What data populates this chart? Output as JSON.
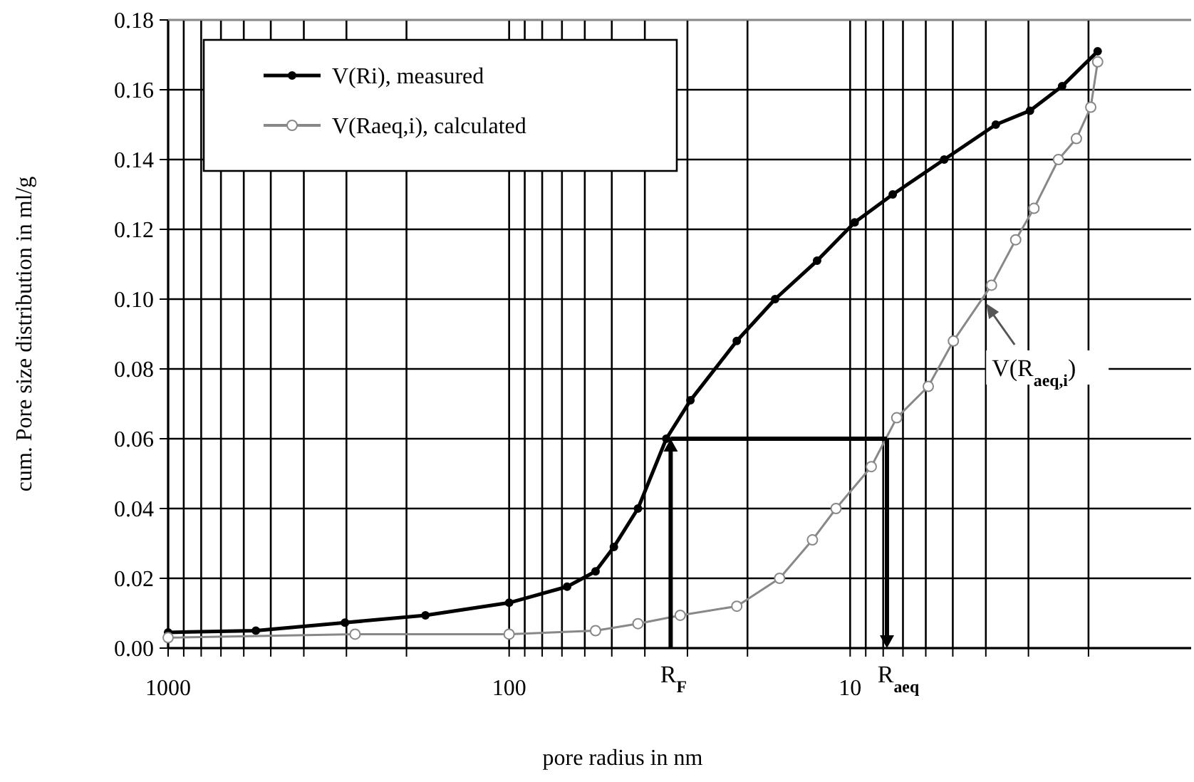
{
  "chart_data": {
    "type": "line",
    "xlabel": "pore radius in nm",
    "ylabel": "cum. Pore size distribution in ml/g",
    "log": "x",
    "xlim": [
      1000,
      1
    ],
    "ylim": [
      0,
      0.18
    ],
    "xticks": [
      1000,
      {
        "value": 900,
        "label": null
      },
      {
        "value": 800,
        "label": null
      },
      {
        "value": 700,
        "label": null
      },
      {
        "value": 600,
        "label": null
      },
      {
        "value": 500,
        "label": null
      },
      {
        "value": 400,
        "label": null
      },
      {
        "value": 300,
        "label": null
      },
      {
        "value": 200,
        "label": null
      },
      100,
      {
        "value": 90,
        "label": null
      },
      {
        "value": 80,
        "label": null
      },
      {
        "value": 70,
        "label": null
      },
      {
        "value": 60,
        "label": null
      },
      {
        "value": 50,
        "label": null
      },
      {
        "value": 40,
        "label": null
      },
      {
        "value": 30,
        "label": null
      },
      {
        "value": 20,
        "label": null
      },
      10,
      {
        "value": 9,
        "label": null
      },
      {
        "value": 8,
        "label": null
      },
      {
        "value": 7,
        "label": null
      },
      {
        "value": 6,
        "label": null
      },
      {
        "value": 5,
        "label": null
      },
      {
        "value": 4,
        "label": null
      },
      {
        "value": 3,
        "label": null
      },
      {
        "value": 2,
        "label": null
      }
    ],
    "yticks": [
      {
        "value": 0,
        "label": "0.00"
      },
      0.02,
      0.04,
      0.06,
      0.08,
      {
        "value": 0.1,
        "label": "0.10"
      },
      0.12,
      0.14,
      0.16,
      0.18
    ],
    "grid": true,
    "legend": "top left",
    "marker": "circle",
    "series": [
      {
        "name": "V(Ri), measured",
        "color": "#000000",
        "x": [
          1000,
          553,
          303,
          176,
          100,
          67.6,
          55.8,
          49.3,
          41.9,
          34.6,
          29.4,
          21.5,
          16.6,
          12.5,
          9.7,
          7.5,
          5.3,
          3.74,
          2.97,
          2.39,
          1.88
        ],
        "values": [
          0.0045,
          0.005,
          0.0073,
          0.0094,
          0.013,
          0.0176,
          0.022,
          0.029,
          0.04,
          0.06,
          0.071,
          0.088,
          0.1,
          0.111,
          0.122,
          0.13,
          0.14,
          0.15,
          0.154,
          0.161,
          0.171
        ]
      },
      {
        "name": "V(Raeq,i), calculated",
        "color": "#888888",
        "x": [
          1000,
          283,
          100,
          55.8,
          41.9,
          31.5,
          21.5,
          16.1,
          12.9,
          11,
          8.67,
          7.3,
          5.9,
          4.98,
          3.85,
          3.27,
          2.89,
          2.45,
          2.17,
          1.97,
          1.88
        ],
        "values": [
          0.003,
          0.004,
          0.004,
          0.005,
          0.007,
          0.0094,
          0.012,
          0.02,
          0.031,
          0.04,
          0.052,
          0.066,
          0.075,
          0.088,
          0.104,
          0.117,
          0.126,
          0.14,
          0.146,
          0.155,
          0.168
        ]
      }
    ],
    "annotations": [
      {
        "text": "R$_{F}$",
        "x": 33.6,
        "y": 0.06
      },
      {
        "text": "R$_{aeq}$",
        "x": 7.8,
        "y": 0.06
      },
      {
        "text": "V(R$_{aeq,i}$)",
        "x": 4.07,
        "y": 0.1
      }
    ]
  }
}
